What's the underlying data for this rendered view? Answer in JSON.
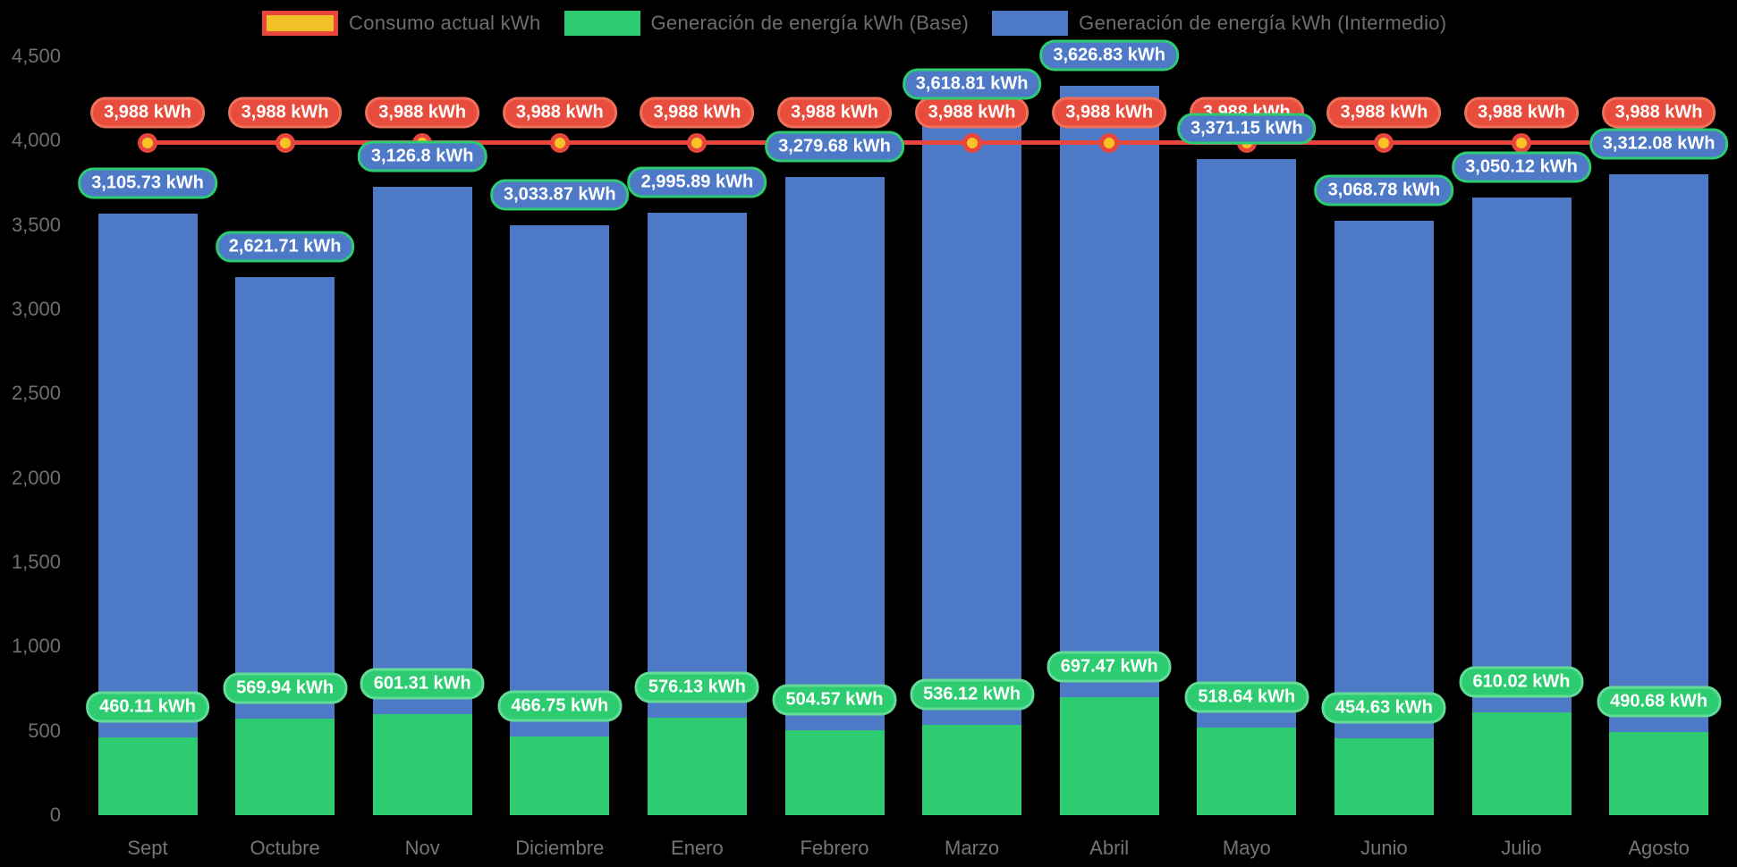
{
  "page": {
    "background": "#000000"
  },
  "chart_data": {
    "type": "bar",
    "stacked": true,
    "title": "",
    "xlabel": "",
    "ylabel": "",
    "grid": false,
    "legend_position": "top",
    "background": "#000000",
    "categories": [
      "Sept",
      "Octubre",
      "Nov",
      "Diciembre",
      "Enero",
      "Febrero",
      "Marzo",
      "Abril",
      "Mayo",
      "Junio",
      "Julio",
      "Agosto"
    ],
    "ylim": [
      0,
      4500
    ],
    "yticks": {
      "values": [
        0,
        500,
        1000,
        1500,
        2000,
        2500,
        3000,
        3500,
        4000,
        4500
      ],
      "labels": [
        "0",
        "500",
        "1,000",
        "1,500",
        "2,000",
        "2,500",
        "3,000",
        "3,500",
        "4,000",
        "4,500"
      ]
    },
    "series": [
      {
        "name": "Consumo actual kWh",
        "type": "line",
        "color": "#E8463C",
        "marker_fill": "#F6C324",
        "marker_border": "#E8463C",
        "label_bg": "#E74C3C",
        "label_border": "#F0705C",
        "swatch_fill": "#F2C029",
        "swatch_border": "#E8463C",
        "values": [
          3988,
          3988,
          3988,
          3988,
          3988,
          3988,
          3988,
          3988,
          3988,
          3988,
          3988,
          3988
        ],
        "labels": [
          "3,988 kWh",
          "3,988 kWh",
          "3,988 kWh",
          "3,988 kWh",
          "3,988 kWh",
          "3,988 kWh",
          "3,988 kWh",
          "3,988 kWh",
          "3,988 kWh",
          "3,988 kWh",
          "3,988 kWh",
          "3,988 kWh"
        ]
      },
      {
        "name": "Generación de energía kWh (Base)",
        "type": "bar",
        "color": "#2ECC71",
        "label_bg": "#2ECC71",
        "label_border": "#62DB97",
        "swatch_fill": "#2ECC71",
        "swatch_border": "#2ECC71",
        "values": [
          460.11,
          569.94,
          601.31,
          466.75,
          576.13,
          504.57,
          536.12,
          697.47,
          518.64,
          454.63,
          610.02,
          490.68
        ],
        "labels": [
          "460.11 kWh",
          "569.94 kWh",
          "601.31 kWh",
          "466.75 kWh",
          "576.13 kWh",
          "504.57 kWh",
          "536.12 kWh",
          "697.47 kWh",
          "518.64 kWh",
          "454.63 kWh",
          "610.02 kWh",
          "490.68 kWh"
        ]
      },
      {
        "name": "Generación de energía kWh (Intermedio)",
        "type": "bar",
        "color": "#4D79C7",
        "label_bg": "#4D79C7",
        "label_border": "#2ECC71",
        "swatch_fill": "#4D79C7",
        "swatch_border": "#4D79C7",
        "values": [
          3105.73,
          2621.71,
          3126.8,
          3033.87,
          2995.89,
          3279.68,
          3618.81,
          3626.83,
          3371.15,
          3068.78,
          3050.12,
          3312.08
        ],
        "labels": [
          "3,105.73 kWh",
          "2,621.71 kWh",
          "3,126.8 kWh",
          "3,033.87 kWh",
          "2,995.89 kWh",
          "3,279.68 kWh",
          "3,618.81 kWh",
          "3,626.83 kWh",
          "3,371.15 kWh",
          "3,068.78 kWh",
          "3,050.12 kWh",
          "3,312.08 kWh"
        ]
      }
    ]
  }
}
